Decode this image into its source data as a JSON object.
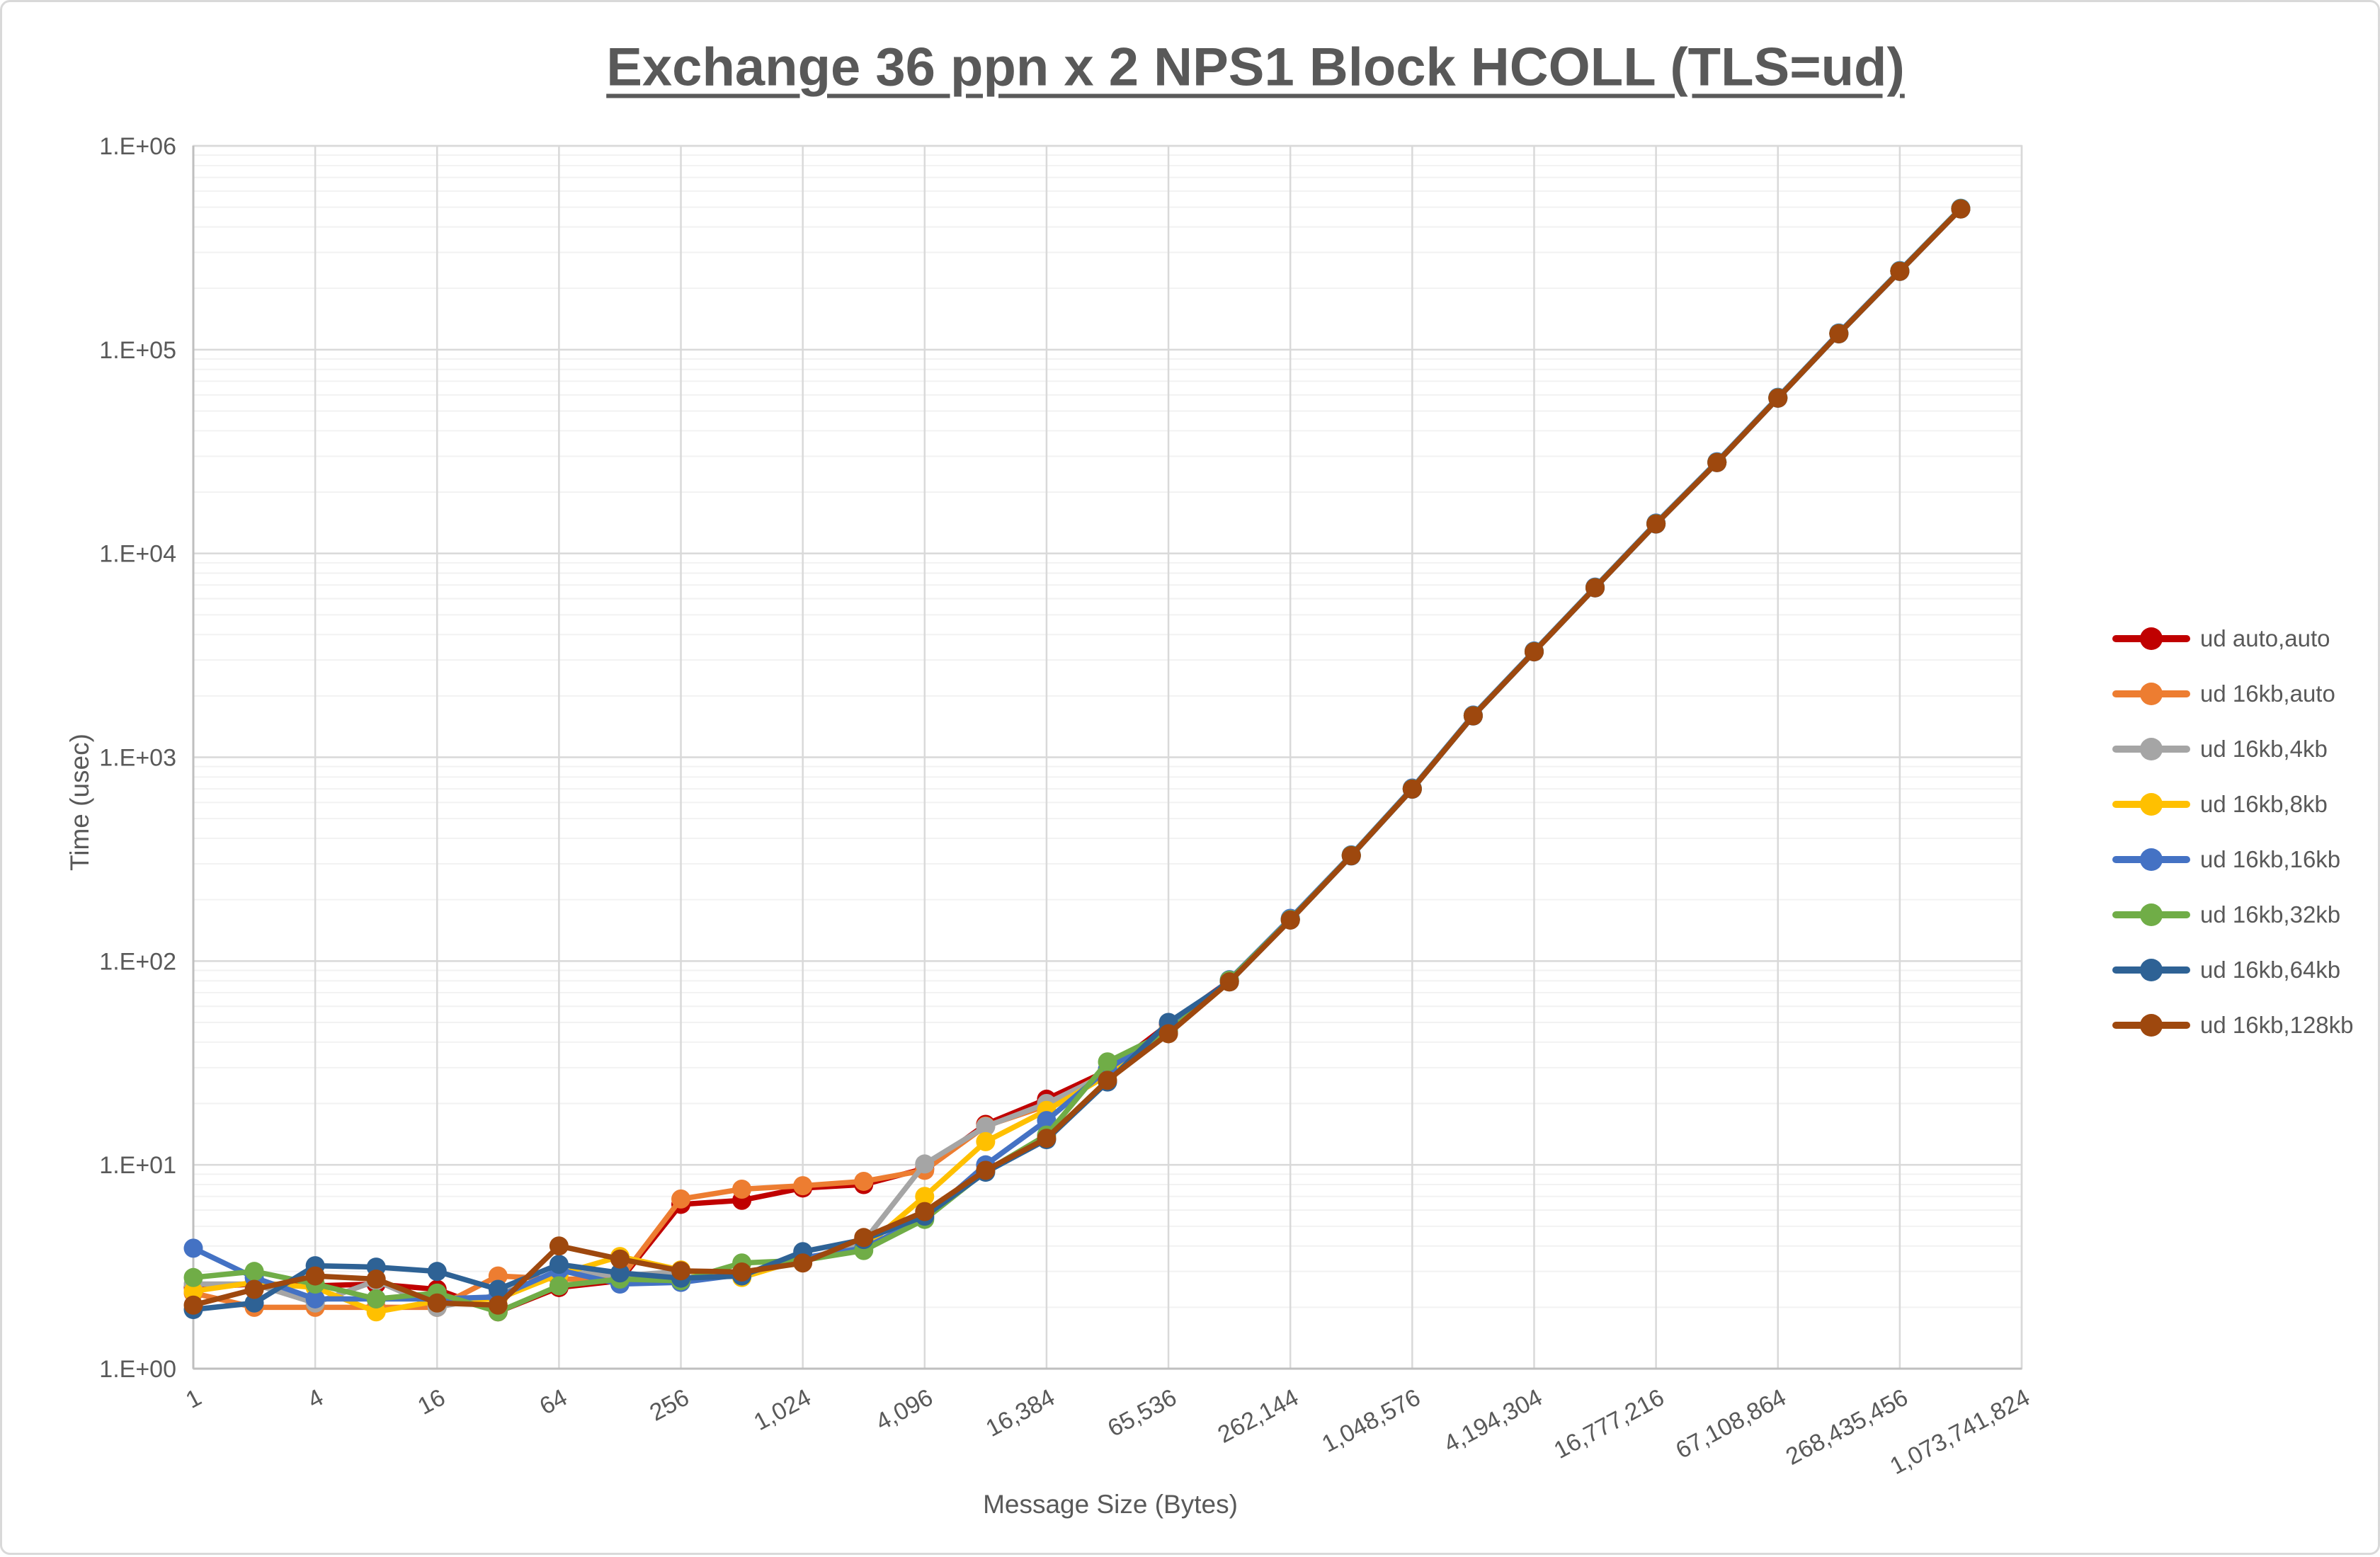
{
  "figure": {
    "title": "Exchange 36 ppn x 2 NPS1 Block HCOLL (TLS=ud)",
    "y_axis_title": "Time (usec)",
    "x_axis_title": "Message Size (Bytes)"
  },
  "colors": {
    "text": "#595959",
    "grid_major": "#d9d9d9",
    "grid_minor": "#f2f2f2",
    "axis_line": "#bfbfbf",
    "plot_border": "#d9d9d9",
    "background": "#ffffff"
  },
  "chart_data": {
    "type": "line",
    "title": "Exchange 36 ppn x 2 NPS1 Block HCOLL (TLS=ud)",
    "xlabel": "Message Size (Bytes)",
    "ylabel": "Time (usec)",
    "x_scale": "log",
    "y_scale": "log",
    "xlim": [
      1,
      1073741824
    ],
    "ylim": [
      1,
      1000000
    ],
    "grid": "major and minor log gridlines, vertical gridlines at power-of-4 ticks",
    "legend_position": "right",
    "x_tick_labels": [
      "1",
      "4",
      "16",
      "64",
      "256",
      "1,024",
      "4,096",
      "16,384",
      "65,536",
      "262,144",
      "1,048,576",
      "4,194,304",
      "16,777,216",
      "67,108,864",
      "268,435,456",
      "1,073,741,824"
    ],
    "y_tick_labels": [
      "1.E+00",
      "1.E+01",
      "1.E+02",
      "1.E+03",
      "1.E+04",
      "1.E+05",
      "1.E+06"
    ],
    "x": [
      1,
      2,
      4,
      8,
      16,
      32,
      64,
      128,
      256,
      512,
      1024,
      2048,
      4096,
      8192,
      16384,
      32768,
      65536,
      131072,
      262144,
      524288,
      1048576,
      2097152,
      4194304,
      8388608,
      16777216,
      33554432,
      67108864,
      134217728,
      268435456,
      536870912
    ],
    "series": [
      {
        "name": "ud auto,auto",
        "color": "#C00000",
        "values": [
          2.5,
          2.6,
          2.55,
          2.6,
          2.45,
          1.9,
          2.5,
          2.7,
          6.4,
          6.7,
          7.7,
          8.0,
          9.6,
          15.8,
          21,
          29,
          49,
          80,
          160,
          330,
          700,
          1600,
          3300,
          6800,
          14000,
          28000,
          58000,
          120000,
          243000,
          492000
        ]
      },
      {
        "name": "ud 16kb,auto",
        "color": "#ED7D31",
        "values": [
          2.35,
          2.0,
          2.0,
          2.0,
          2.0,
          2.85,
          2.75,
          2.75,
          6.8,
          7.6,
          7.9,
          8.3,
          9.4,
          15.5,
          19.5,
          28.5,
          47,
          80,
          161,
          331,
          703,
          1606,
          3312,
          6822,
          14050,
          28100,
          58200,
          120400,
          243600,
          492600
        ]
      },
      {
        "name": "ud 16kb,4kb",
        "color": "#A5A5A5",
        "values": [
          2.6,
          2.6,
          2.1,
          2.7,
          2.0,
          2.3,
          3.0,
          2.85,
          3.0,
          2.85,
          3.4,
          4.2,
          10.1,
          15.4,
          20,
          28,
          46.5,
          79.6,
          160,
          329,
          699,
          1597,
          3294,
          6788,
          13980,
          27950,
          57900,
          119800,
          242500,
          491200
        ]
      },
      {
        "name": "ud 16kb,8kb",
        "color": "#FFC000",
        "values": [
          2.4,
          2.65,
          2.5,
          1.9,
          2.15,
          2.2,
          2.9,
          3.55,
          3.05,
          2.8,
          3.45,
          3.9,
          7.0,
          13.0,
          18.5,
          27.5,
          46,
          79.4,
          160,
          330,
          701,
          1601,
          3303,
          6806,
          14010,
          28030,
          58050,
          120100,
          243200,
          492300
        ]
      },
      {
        "name": "ud 16kb,16kb",
        "color": "#4472C4",
        "values": [
          3.9,
          2.8,
          2.2,
          2.2,
          2.2,
          2.25,
          3.05,
          2.6,
          2.65,
          2.9,
          3.5,
          3.9,
          5.5,
          10.0,
          16.5,
          29.5,
          45.5,
          81,
          162,
          332,
          706,
          1611,
          3322,
          6844,
          14100,
          28190,
          58380,
          120800,
          244400,
          494300
        ]
      },
      {
        "name": "ud 16kb,32kb",
        "color": "#70AD47",
        "values": [
          2.8,
          3.0,
          2.6,
          2.2,
          2.35,
          1.9,
          2.55,
          2.75,
          2.7,
          3.3,
          3.4,
          3.8,
          5.4,
          9.3,
          14.0,
          32,
          45,
          80.5,
          160,
          330,
          700,
          1600,
          3300,
          6800,
          14000,
          28000,
          58000,
          120000,
          243000,
          492000
        ]
      },
      {
        "name": "ud 16kb,64kb",
        "color": "#2E6295",
        "values": [
          1.95,
          2.1,
          3.2,
          3.15,
          3.0,
          2.45,
          3.25,
          2.95,
          2.78,
          2.85,
          3.75,
          4.3,
          5.6,
          9.2,
          13.3,
          25.5,
          50,
          79,
          159,
          328,
          697,
          1593,
          3288,
          6775,
          13940,
          27900,
          57760,
          119500,
          242000,
          489900
        ]
      },
      {
        "name": "ud 16kb,128kb",
        "color": "#9E480E",
        "values": [
          2.05,
          2.45,
          2.85,
          2.75,
          2.1,
          2.05,
          4.0,
          3.45,
          3.02,
          2.98,
          3.3,
          4.4,
          5.9,
          9.4,
          13.5,
          26,
          44,
          79,
          159,
          329,
          698,
          1596,
          3293,
          6785,
          13960,
          27930,
          57840,
          119700,
          242300,
          490200
        ]
      }
    ]
  }
}
